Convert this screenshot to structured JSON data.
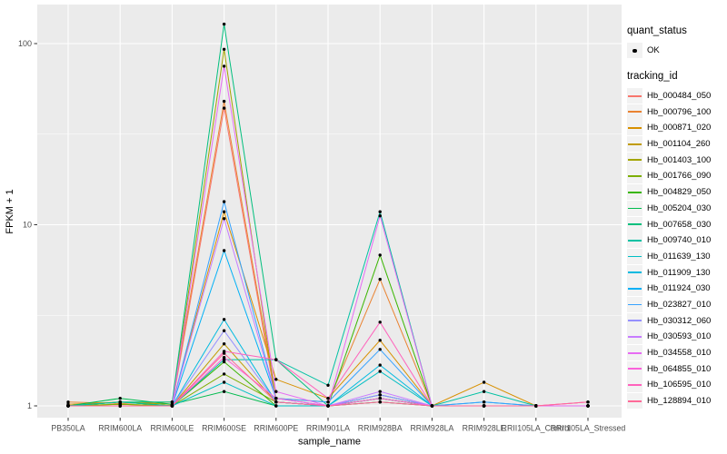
{
  "figure": {
    "panel_background": "#EBEBEB",
    "grid_color": "#FFFFFF",
    "legend_key_background": "#F2F2F2",
    "tick_label_color": "#4D4D4D",
    "axis_title_color": "#000000",
    "point_color": "#000000"
  },
  "chart_data": {
    "type": "line",
    "title": "",
    "xlabel": "sample_name",
    "ylabel": "FPKM + 1",
    "y_scale": "log10",
    "y_ticks": [
      1,
      10,
      100
    ],
    "y_tick_labels": [
      "1",
      "10",
      "100"
    ],
    "y_minor_ticks": [
      3.1623,
      31.623
    ],
    "ylim": [
      0.93,
      150
    ],
    "grid": true,
    "legend_position": "right",
    "categories": [
      "PB350LA",
      "RRIM600LA",
      "RRIM600LE",
      "RRIM600SE",
      "RRIM600PE",
      "RRIM901LA",
      "RRIM928BA",
      "RRIM928LA",
      "RRIM928LE",
      "RRII105LA_Control",
      "RRII105LA_Stressed"
    ],
    "legend": {
      "quant_status_title": "quant_status",
      "ok_label": "OK",
      "tracking_id_title": "tracking_id"
    },
    "series": [
      {
        "name": "Hb_000484_050",
        "color": "#F8766D",
        "values": [
          1.0,
          1.0,
          1.0,
          44,
          1.05,
          1.0,
          1.05,
          1.0,
          1.0,
          1.0,
          1.0
        ]
      },
      {
        "name": "Hb_000796_100",
        "color": "#EA8331",
        "values": [
          1.05,
          1.03,
          1.05,
          48,
          1.1,
          1.05,
          5.0,
          1.0,
          1.0,
          1.0,
          1.0
        ]
      },
      {
        "name": "Hb_000871_020",
        "color": "#D89000",
        "values": [
          1.02,
          1.05,
          1.0,
          11.8,
          1.4,
          1.1,
          2.3,
          1.0,
          1.35,
          1.0,
          1.0
        ]
      },
      {
        "name": "Hb_001104_260",
        "color": "#C09B00",
        "values": [
          1.0,
          1.02,
          1.0,
          2.2,
          1.05,
          1.0,
          1.1,
          1.0,
          1.0,
          1.0,
          1.0
        ]
      },
      {
        "name": "Hb_001403_100",
        "color": "#A3A500",
        "values": [
          1.0,
          1.05,
          1.02,
          93,
          1.05,
          1.0,
          1.15,
          1.0,
          1.0,
          1.0,
          1.0
        ]
      },
      {
        "name": "Hb_001766_090",
        "color": "#7CAE00",
        "values": [
          1.0,
          1.02,
          1.0,
          1.5,
          1.05,
          1.0,
          1.1,
          1.0,
          1.0,
          1.0,
          1.0
        ]
      },
      {
        "name": "Hb_004829_050",
        "color": "#39B600",
        "values": [
          1.0,
          1.05,
          1.0,
          1.75,
          1.0,
          1.0,
          6.8,
          1.0,
          1.0,
          1.0,
          1.0
        ]
      },
      {
        "name": "Hb_005204_030",
        "color": "#00BB4E",
        "values": [
          1.0,
          1.1,
          1.02,
          1.2,
          1.0,
          1.0,
          1.05,
          1.0,
          1.0,
          1.0,
          1.0
        ]
      },
      {
        "name": "Hb_007658_030",
        "color": "#00BF7D",
        "values": [
          1.0,
          1.05,
          1.05,
          128,
          1.8,
          1.0,
          1.1,
          1.0,
          1.0,
          1.0,
          1.0
        ]
      },
      {
        "name": "Hb_009740_010",
        "color": "#00C1A3",
        "values": [
          1.0,
          1.05,
          1.0,
          1.8,
          1.8,
          1.3,
          11.8,
          1.0,
          1.2,
          1.0,
          1.0
        ]
      },
      {
        "name": "Hb_011639_130",
        "color": "#00BFC4",
        "values": [
          1.0,
          1.0,
          1.0,
          1.35,
          1.0,
          1.0,
          1.55,
          1.0,
          1.0,
          1.0,
          1.0
        ]
      },
      {
        "name": "Hb_011909_130",
        "color": "#00BAE0",
        "values": [
          1.0,
          1.0,
          1.0,
          3.0,
          1.05,
          1.0,
          1.68,
          1.0,
          1.05,
          1.0,
          1.0
        ]
      },
      {
        "name": "Hb_011924_030",
        "color": "#00B0F6",
        "values": [
          1.0,
          1.0,
          1.0,
          7.2,
          1.1,
          1.0,
          1.15,
          1.0,
          1.0,
          1.0,
          1.0
        ]
      },
      {
        "name": "Hb_023827_010",
        "color": "#35A2FF",
        "values": [
          1.0,
          1.0,
          1.0,
          13.4,
          1.1,
          1.05,
          2.05,
          1.0,
          1.05,
          1.0,
          1.0
        ]
      },
      {
        "name": "Hb_030312_060",
        "color": "#9590FF",
        "values": [
          1.0,
          1.0,
          1.0,
          2.6,
          1.05,
          1.0,
          1.15,
          1.0,
          1.0,
          1.0,
          1.0
        ]
      },
      {
        "name": "Hb_030593_010",
        "color": "#C77CFF",
        "values": [
          1.0,
          1.0,
          1.0,
          10.8,
          1.1,
          1.0,
          1.2,
          1.0,
          1.0,
          1.0,
          1.0
        ]
      },
      {
        "name": "Hb_034558_010",
        "color": "#E76BF3",
        "values": [
          1.0,
          1.0,
          1.0,
          75,
          1.2,
          1.0,
          11.2,
          1.0,
          1.0,
          1.0,
          1.0
        ]
      },
      {
        "name": "Hb_064855_010",
        "color": "#FA62DB",
        "values": [
          1.0,
          1.0,
          1.0,
          1.85,
          1.1,
          1.0,
          1.1,
          1.0,
          1.0,
          1.0,
          1.05
        ]
      },
      {
        "name": "Hb_106595_010",
        "color": "#FF62BC",
        "values": [
          1.0,
          1.0,
          1.0,
          2.0,
          1.8,
          1.1,
          2.9,
          1.0,
          1.0,
          1.0,
          1.05
        ]
      },
      {
        "name": "Hb_128894_010",
        "color": "#FF6A98",
        "values": [
          1.0,
          1.0,
          1.0,
          1.95,
          1.05,
          1.0,
          1.05,
          1.0,
          1.0,
          1.0,
          1.05
        ]
      }
    ]
  }
}
